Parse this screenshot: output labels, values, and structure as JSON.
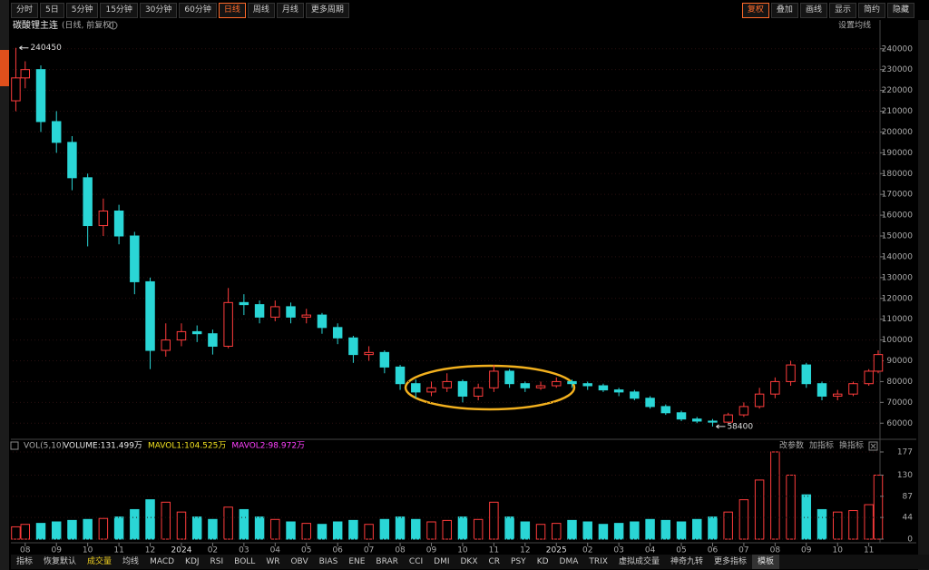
{
  "toolbar": {
    "left": [
      "分时",
      "5日",
      "5分钟",
      "15分钟",
      "30分钟",
      "60分钟",
      "日线",
      "周线",
      "月线",
      "更多周期"
    ],
    "left_active": 6,
    "right": [
      "复权",
      "叠加",
      "画线",
      "显示",
      "简约",
      "隐藏"
    ],
    "right_active": 0
  },
  "bottom_tabs": {
    "items": [
      "指标",
      "恢复默认",
      "成交量",
      "均线",
      "MACD",
      "KDJ",
      "RSI",
      "BOLL",
      "WR",
      "OBV",
      "BIAS",
      "ENE",
      "BRAR",
      "CCI",
      "DMI",
      "DKX",
      "CR",
      "PSY",
      "KD",
      "DMA",
      "TRIX",
      "虚拟成交量",
      "神奇九转",
      "更多指标"
    ],
    "active": 2,
    "template": "模板"
  },
  "chart_data": [
    {
      "type": "candlestick",
      "title": "碳酸锂主连",
      "subtitle": "(日线, 前复权)",
      "ma_setting": "设置均线",
      "up_color": "#ff3c3c",
      "down_color": "#2ad6d6",
      "grid": true,
      "x": [
        -0.3,
        0,
        0.5,
        1,
        1.5,
        2,
        2.5,
        3,
        3.5,
        4,
        4.5,
        5,
        5.5,
        6,
        6.5,
        7,
        7.5,
        8,
        8.5,
        9,
        9.5,
        10,
        10.5,
        11,
        11.5,
        12,
        12.5,
        13,
        13.5,
        14,
        14.5,
        15,
        15.5,
        16,
        16.5,
        17,
        17.5,
        18,
        18.5,
        19,
        19.5,
        20,
        20.5,
        21,
        21.5,
        22,
        22.5,
        23,
        23.5,
        24,
        24.5,
        25,
        25.5,
        26,
        26.5,
        27,
        27.3
      ],
      "open": [
        215000,
        226000,
        230000,
        205000,
        195000,
        178000,
        155000,
        162000,
        150000,
        128000,
        95000,
        100000,
        104000,
        103000,
        97000,
        118000,
        117000,
        111000,
        116000,
        111000,
        112000,
        106000,
        101000,
        93000,
        94000,
        87000,
        79000,
        75000,
        77000,
        80000,
        73000,
        77000,
        85000,
        79000,
        77000,
        78000,
        80000,
        79000,
        78000,
        76000,
        75000,
        72000,
        68000,
        65000,
        62000,
        61000,
        60500,
        64000,
        68000,
        74000,
        80000,
        88000,
        79000,
        73000,
        74000,
        79000,
        85000
      ],
      "high": [
        240450,
        234000,
        232000,
        210000,
        198000,
        180000,
        168000,
        165000,
        152000,
        130000,
        108000,
        108000,
        107000,
        105000,
        125000,
        122000,
        119000,
        119000,
        118000,
        115000,
        113000,
        108000,
        102000,
        97000,
        95000,
        88000,
        81000,
        80000,
        84000,
        81000,
        79000,
        88000,
        86000,
        80000,
        80000,
        82000,
        81000,
        80000,
        79000,
        77000,
        76000,
        73000,
        69000,
        66000,
        63000,
        62000,
        65000,
        70000,
        77000,
        82000,
        90000,
        89000,
        80000,
        76000,
        80000,
        86000,
        95000
      ],
      "low": [
        210000,
        221000,
        200000,
        190000,
        172000,
        145000,
        150000,
        146000,
        122000,
        86000,
        92000,
        97000,
        99000,
        93000,
        96000,
        112000,
        108000,
        109000,
        108000,
        108000,
        103000,
        98000,
        89000,
        90000,
        84000,
        76000,
        72000,
        73000,
        75000,
        70000,
        71000,
        75000,
        77000,
        75000,
        76000,
        77000,
        77000,
        76000,
        75000,
        73000,
        71000,
        67000,
        64000,
        61000,
        60000,
        58400,
        60000,
        63000,
        67000,
        72000,
        78000,
        77000,
        71000,
        71000,
        73000,
        78000,
        84000
      ],
      "close": [
        226000,
        230000,
        205000,
        195000,
        178000,
        155000,
        162000,
        150000,
        128000,
        95000,
        100000,
        104000,
        103000,
        97000,
        118000,
        117000,
        111000,
        116000,
        111000,
        112000,
        106000,
        101000,
        93000,
        94000,
        87000,
        79000,
        75000,
        77000,
        80000,
        73000,
        77000,
        85000,
        79000,
        77000,
        78000,
        80000,
        79000,
        78000,
        76000,
        75000,
        72000,
        68000,
        65000,
        62000,
        61000,
        60500,
        64000,
        68000,
        74000,
        80000,
        88000,
        79000,
        73000,
        74000,
        79000,
        85000,
        93000
      ],
      "ylim": [
        54000,
        246000
      ],
      "yticks": [
        60000,
        70000,
        80000,
        90000,
        100000,
        110000,
        120000,
        130000,
        140000,
        150000,
        160000,
        170000,
        180000,
        190000,
        200000,
        210000,
        220000,
        230000,
        240000
      ],
      "xlim": [
        -0.4,
        27.3
      ],
      "xticks": [
        {
          "value": 0,
          "label": "08"
        },
        {
          "value": 1,
          "label": "09"
        },
        {
          "value": 2,
          "label": "10"
        },
        {
          "value": 3,
          "label": "11"
        },
        {
          "value": 4,
          "label": "12"
        },
        {
          "value": 5,
          "label": "2024"
        },
        {
          "value": 6,
          "label": "02"
        },
        {
          "value": 7,
          "label": "03"
        },
        {
          "value": 8,
          "label": "04"
        },
        {
          "value": 9,
          "label": "05"
        },
        {
          "value": 10,
          "label": "06"
        },
        {
          "value": 11,
          "label": "07"
        },
        {
          "value": 12,
          "label": "08"
        },
        {
          "value": 13,
          "label": "09"
        },
        {
          "value": 14,
          "label": "10"
        },
        {
          "value": 15,
          "label": "11"
        },
        {
          "value": 16,
          "label": "12"
        },
        {
          "value": 17,
          "label": "2025"
        },
        {
          "value": 18,
          "label": "02"
        },
        {
          "value": 19,
          "label": "03"
        },
        {
          "value": 20,
          "label": "04"
        },
        {
          "value": 21,
          "label": "05"
        },
        {
          "value": 22,
          "label": "06"
        },
        {
          "value": 23,
          "label": "07"
        },
        {
          "value": 24,
          "label": "08"
        },
        {
          "value": 25,
          "label": "09"
        },
        {
          "value": 26,
          "label": "10"
        },
        {
          "value": 27,
          "label": "11"
        }
      ],
      "annotations": [
        {
          "x": -0.3,
          "value": 240450
        },
        {
          "x": 22,
          "value": 58400
        }
      ]
    },
    {
      "type": "bar",
      "title": "VOL(5,10)",
      "legend": [
        {
          "text": "VOLUME:131.499万",
          "color": "#e8e8e8"
        },
        {
          "text": "MAVOL1:104.525万",
          "color": "#f0e020"
        },
        {
          "text": "MAVOL2:98.972万",
          "color": "#ff40ff"
        }
      ],
      "actions": [
        "改参数",
        "加指标",
        "换指标"
      ],
      "values": [
        25,
        30,
        32,
        35,
        38,
        40,
        42,
        45,
        60,
        80,
        75,
        55,
        45,
        40,
        65,
        60,
        45,
        40,
        35,
        32,
        30,
        35,
        38,
        30,
        40,
        45,
        40,
        35,
        38,
        45,
        40,
        75,
        45,
        35,
        30,
        32,
        38,
        35,
        30,
        32,
        35,
        40,
        38,
        35,
        40,
        45,
        55,
        80,
        120,
        177,
        130,
        90,
        60,
        55,
        58,
        70,
        130
      ],
      "ylim": [
        0,
        188
      ],
      "yticks": [
        0,
        44,
        87,
        130,
        177
      ]
    }
  ]
}
